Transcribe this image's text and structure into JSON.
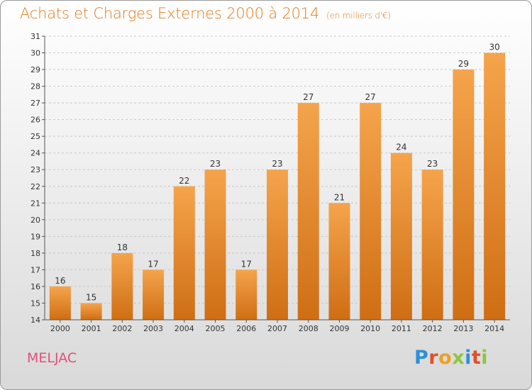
{
  "header": {
    "title": "Achats et Charges Externes 2000 à 2014",
    "subtitle": "(en milliers d'€)"
  },
  "footer": {
    "commune": "MELJAC",
    "logo_letters": [
      "P",
      "r",
      "o",
      "x",
      "i",
      "t",
      "i"
    ]
  },
  "colors": {
    "title": "#e07a1c",
    "commune": "#e0507a",
    "bar_light": "#f5a44c",
    "bar_dark": "#cf6e14",
    "logo_letters": [
      "#2f8fd8",
      "#e0502a",
      "#f0a020",
      "#8cc63f",
      "#2f8fd8",
      "#e0502a",
      "#8cc63f"
    ]
  },
  "chart_data": {
    "type": "bar",
    "categories": [
      "2000",
      "2001",
      "2002",
      "2003",
      "2004",
      "2005",
      "2006",
      "2007",
      "2008",
      "2009",
      "2010",
      "2011",
      "2012",
      "2013",
      "2014"
    ],
    "values": [
      16,
      15,
      18,
      17,
      22,
      23,
      17,
      23,
      27,
      21,
      27,
      24,
      23,
      29,
      30
    ],
    "ylim": [
      14,
      31
    ],
    "yticks": [
      "14",
      "15",
      "16",
      "17",
      "18",
      "19",
      "20",
      "21",
      "22",
      "23",
      "24",
      "25",
      "26",
      "27",
      "28",
      "29",
      "30",
      "31"
    ],
    "grid": "horizontal dashed",
    "legend": "none"
  }
}
